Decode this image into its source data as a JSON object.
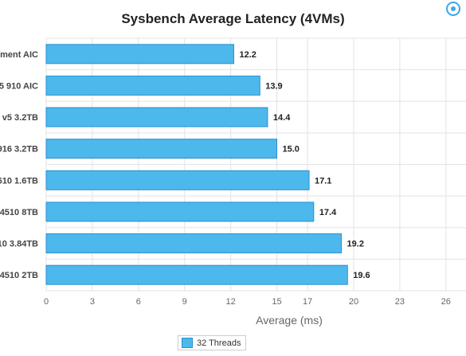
{
  "chart_data": {
    "type": "bar",
    "orientation": "horizontal",
    "title": "Sysbench Average Latency (4VMs)",
    "xlabel": "Average (ms)",
    "ylabel": "",
    "categories": [
      "ment AIC",
      "5 910 AIC",
      "v5 3.2TB",
      "916 3.2TB",
      "610 1.6TB",
      "4510 8TB",
      "10 3.84TB",
      "4510 2TB"
    ],
    "series": [
      {
        "name": "32 Threads",
        "values": [
          12.2,
          13.9,
          14.4,
          15.0,
          17.1,
          17.4,
          19.2,
          19.6
        ],
        "labels": [
          "12.2",
          "13.9",
          "14.4",
          "15.0",
          "17.1",
          "17.4",
          "19.2",
          "19.6"
        ]
      }
    ],
    "xticks": [
      "0",
      "3",
      "6",
      "9",
      "12",
      "15",
      "17",
      "20",
      "23",
      "26"
    ],
    "xlim": [
      0,
      26
    ],
    "grid": true,
    "legend_position": "bottom-center",
    "bar_color": "#4db8ec",
    "bar_border_color": "#2b8fcf"
  }
}
